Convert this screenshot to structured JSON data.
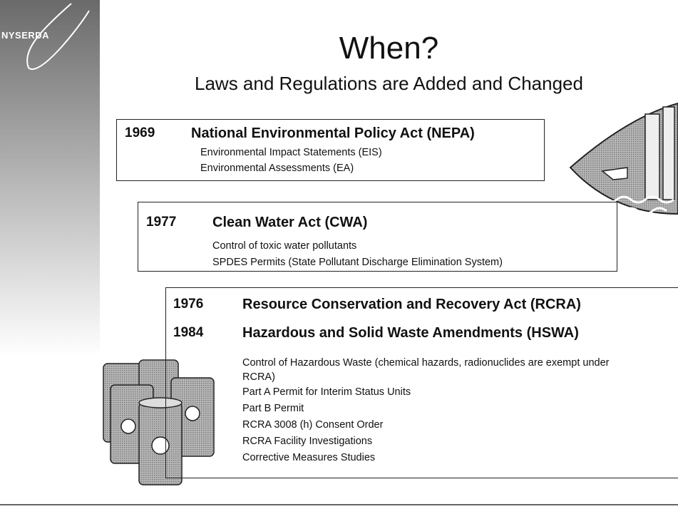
{
  "header": {
    "logo": "NYSERDA",
    "title": "When?",
    "subtitle": "Laws and Regulations are Added and Changed"
  },
  "sections": [
    {
      "laws": [
        {
          "year": "1969",
          "name": "National Environmental Policy Act (NEPA)"
        }
      ],
      "items": [
        "Environmental Impact Statements (EIS)",
        "Environmental Assessments (EA)"
      ]
    },
    {
      "laws": [
        {
          "year": "1977",
          "name": "Clean Water Act (CWA)"
        }
      ],
      "items": [
        "Control of toxic water pollutants",
        "SPDES Permits (State Pollutant Discharge Elimination System)"
      ]
    },
    {
      "laws": [
        {
          "year": "1976",
          "name": "Resource Conservation and Recovery Act (RCRA)"
        },
        {
          "year": "1984",
          "name": "Hazardous and Solid Waste Amendments (HSWA)"
        }
      ],
      "items": [
        "Control of Hazardous Waste (chemical hazards, radionuclides are exempt under RCRA)",
        "Part A Permit for Interim Status Units",
        "Part B Permit",
        "RCRA 3008 (h) Consent Order",
        "RCRA Facility Investigations",
        "Corrective Measures Studies"
      ]
    }
  ]
}
